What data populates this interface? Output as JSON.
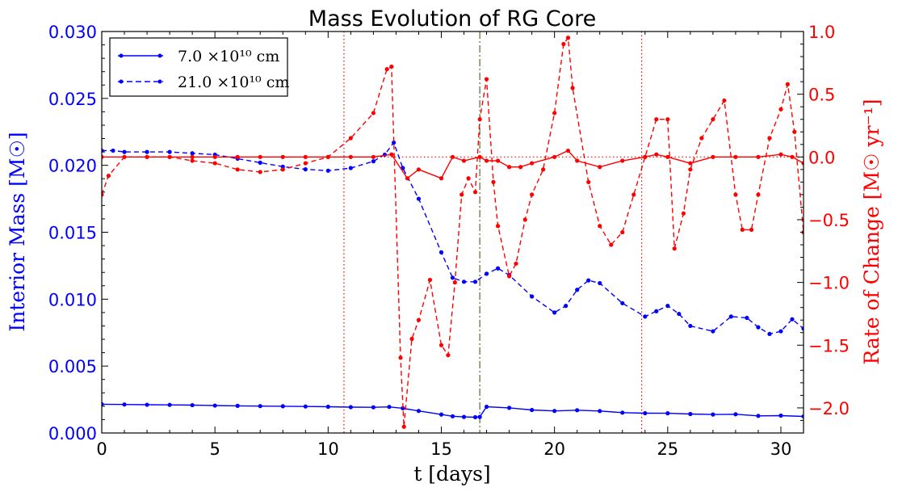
{
  "chart_data": {
    "type": "line",
    "title": "Mass Evolution of RG Core",
    "xlabel": "t  [days]",
    "ylabel_left": "Interior Mass  [M☉]",
    "ylabel_right": "Rate of Change  [M☉ yr⁻¹]",
    "xlim": [
      0,
      31
    ],
    "ylim_left": [
      0,
      0.03
    ],
    "ylim_right": [
      -2.2,
      1.0
    ],
    "x_ticks": [
      0,
      5,
      10,
      15,
      20,
      25,
      30
    ],
    "x_tick_labels": [
      "0",
      "5",
      "10",
      "15",
      "20",
      "25",
      "30"
    ],
    "y_left_ticks": [
      0,
      0.005,
      0.01,
      0.015,
      0.02,
      0.025,
      0.03
    ],
    "y_left_tick_labels": [
      "0.000",
      "0.005",
      "0.010",
      "0.015",
      "0.020",
      "0.025",
      "0.030"
    ],
    "y_right_ticks": [
      -2.0,
      -1.5,
      -1.0,
      -0.5,
      0.0,
      0.5,
      1.0
    ],
    "y_right_tick_labels": [
      "−2.0",
      "−1.5",
      "−1.0",
      "−0.5",
      "0.0",
      "0.5",
      "1.0"
    ],
    "legend": {
      "position": "upper-left",
      "entries": [
        {
          "label": "7.0 ×10¹⁰  cm",
          "style": "solid"
        },
        {
          "label": "21.0 ×10¹⁰  cm",
          "style": "dashed"
        }
      ]
    },
    "colors": {
      "left_axis": "#0000ff",
      "right_axis": "#ff0000",
      "event_line": "#556b2f"
    },
    "vlines": [
      {
        "x": 10.7,
        "style": "dotted",
        "color": "#ff0000"
      },
      {
        "x": 16.7,
        "style": "dashdot",
        "color": "#556b2f"
      },
      {
        "x": 23.85,
        "style": "dotted",
        "color": "#ff0000"
      }
    ],
    "hline_right": {
      "y": 0.0,
      "style": "dotted",
      "color": "#ff0000",
      "x_range": [
        10.7,
        31
      ]
    },
    "series": [
      {
        "axis": "left",
        "color": "#0000ff",
        "style": "solid",
        "x": [
          0,
          1,
          2,
          3,
          4,
          5,
          6,
          7,
          8,
          9,
          10,
          11,
          12,
          12.7,
          13.3,
          14,
          15,
          15.5,
          16,
          16.5,
          16.7,
          17,
          18,
          19,
          20,
          21,
          22,
          23,
          24,
          25,
          26,
          27,
          28,
          29,
          30,
          31
        ],
        "y": [
          0.00215,
          0.00213,
          0.00211,
          0.0021,
          0.00208,
          0.00205,
          0.00203,
          0.00201,
          0.002,
          0.00198,
          0.00196,
          0.00193,
          0.00192,
          0.00195,
          0.00185,
          0.00165,
          0.00138,
          0.00125,
          0.0012,
          0.00118,
          0.0012,
          0.00196,
          0.00188,
          0.00172,
          0.00165,
          0.0017,
          0.00164,
          0.00152,
          0.00148,
          0.00147,
          0.00142,
          0.00138,
          0.0014,
          0.00128,
          0.0013,
          0.00124
        ]
      },
      {
        "axis": "left",
        "color": "#0000ff",
        "style": "dashed",
        "x": [
          0,
          0.5,
          1,
          2,
          3,
          4,
          5,
          6,
          7,
          8,
          9,
          10,
          11,
          12,
          12.5,
          12.9,
          13.3,
          14,
          15,
          15.5,
          16,
          16.5,
          17,
          17.5,
          18,
          19,
          20,
          20.5,
          21,
          21.5,
          22,
          23,
          24,
          24.5,
          25,
          25.5,
          26,
          27,
          27.8,
          28.5,
          29,
          29.5,
          30,
          30.5,
          31
        ],
        "y": [
          0.0211,
          0.0211,
          0.021,
          0.021,
          0.021,
          0.0209,
          0.0208,
          0.0205,
          0.0202,
          0.0199,
          0.0197,
          0.0196,
          0.0198,
          0.0203,
          0.0208,
          0.0217,
          0.0198,
          0.0175,
          0.0135,
          0.0116,
          0.0113,
          0.0113,
          0.0119,
          0.0123,
          0.0118,
          0.0102,
          0.009,
          0.0095,
          0.0107,
          0.0114,
          0.0112,
          0.0097,
          0.0087,
          0.0091,
          0.0095,
          0.0089,
          0.008,
          0.0076,
          0.0087,
          0.0086,
          0.0079,
          0.0074,
          0.0076,
          0.0085,
          0.0078
        ]
      },
      {
        "axis": "right",
        "color": "#ff0000",
        "style": "solid",
        "x": [
          0,
          1,
          2,
          3,
          4,
          5,
          6,
          7,
          8,
          9,
          10,
          11,
          12,
          12.8,
          13.5,
          14,
          15,
          15.5,
          16,
          16.7,
          17,
          17.5,
          18,
          18.5,
          19,
          20,
          20.6,
          21,
          22,
          23,
          24,
          24.5,
          25,
          26,
          27,
          28,
          29,
          30,
          30.5,
          31
        ],
        "y": [
          0.0,
          0.0,
          0.0,
          0.0,
          0.0,
          0.0,
          0.0,
          0.0,
          0.0,
          0.0,
          0.0,
          0.0,
          0.0,
          0.02,
          -0.17,
          -0.1,
          -0.17,
          0.0,
          -0.03,
          0.0,
          -0.03,
          -0.03,
          -0.08,
          -0.08,
          -0.05,
          0.0,
          0.05,
          -0.03,
          -0.08,
          -0.03,
          0.0,
          0.02,
          0.0,
          -0.05,
          0.0,
          0.0,
          0.0,
          0.02,
          0.0,
          -0.05
        ]
      },
      {
        "axis": "right",
        "color": "#ff0000",
        "style": "dashed",
        "x": [
          0,
          0.3,
          1,
          2,
          3,
          4,
          5,
          6,
          7,
          8,
          9,
          10,
          11,
          12,
          12.6,
          12.8,
          13.2,
          13.35,
          13.7,
          14,
          14.5,
          15,
          15.3,
          15.6,
          15.9,
          16.2,
          16.5,
          16.7,
          17,
          17.3,
          17.5,
          18,
          18.3,
          18.7,
          19,
          19.5,
          20,
          20.4,
          20.6,
          20.8,
          21.5,
          22,
          22.5,
          23,
          23.5,
          24,
          24.5,
          25,
          25.3,
          25.7,
          26,
          26.5,
          27,
          27.5,
          28,
          28.3,
          28.7,
          29,
          29.5,
          30,
          30.3,
          30.6,
          31
        ],
        "y": [
          -0.3,
          -0.15,
          0.0,
          0.0,
          0.0,
          -0.03,
          -0.05,
          -0.1,
          -0.12,
          -0.1,
          -0.05,
          0.0,
          0.15,
          0.35,
          0.7,
          0.72,
          -1.6,
          -2.15,
          -1.45,
          -1.3,
          -0.98,
          -1.5,
          -1.58,
          -1.0,
          -0.3,
          -0.17,
          -0.28,
          0.3,
          0.62,
          -0.2,
          -0.55,
          -0.95,
          -0.85,
          -0.5,
          -0.3,
          -0.1,
          0.35,
          0.9,
          0.95,
          0.55,
          -0.2,
          -0.55,
          -0.7,
          -0.6,
          -0.3,
          0.0,
          0.3,
          0.3,
          -0.73,
          -0.45,
          -0.1,
          0.15,
          0.3,
          0.45,
          -0.3,
          -0.58,
          -0.58,
          -0.3,
          0.15,
          0.38,
          0.58,
          0.2,
          -0.6
        ]
      }
    ]
  }
}
